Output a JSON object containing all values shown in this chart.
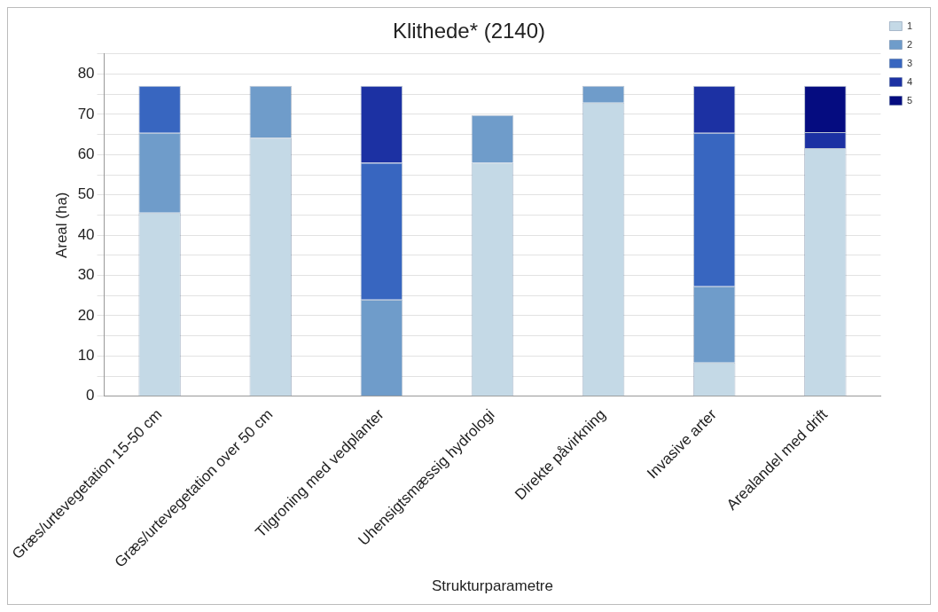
{
  "chart_data": {
    "type": "bar",
    "title": "Klithede* (2140)",
    "xlabel": "Strukturparametre",
    "ylabel": "Areal (ha)",
    "categories": [
      "Græs/urtevegetation 15-50 cm",
      "Græs/urtevegetation over 50 cm",
      "Tilgroning med vedplanter",
      "Uhensigtsmæssig hydrologi",
      "Direkte påvirkning",
      "Invasive arter",
      "Arealandel med drift"
    ],
    "stacked": true,
    "ylim": [
      0,
      85
    ],
    "yticks": [
      0,
      {
        "value": 5,
        "label": null
      },
      10,
      {
        "value": 15,
        "label": null
      },
      20,
      {
        "value": 25,
        "label": null
      },
      30,
      {
        "value": 35,
        "label": null
      },
      40,
      {
        "value": 45,
        "label": null
      },
      50,
      {
        "value": 55,
        "label": null
      },
      60,
      {
        "value": 65,
        "label": null
      },
      70,
      {
        "value": 75,
        "label": null
      },
      80,
      {
        "value": 85,
        "label": null
      }
    ],
    "grid": "y",
    "legend": "top right",
    "series": [
      {
        "name": "1",
        "color": "#c4d9e6",
        "values": [
          45.6,
          64.2,
          null,
          58,
          72.9,
          8.4,
          61.6
        ]
      },
      {
        "name": "2",
        "color": "#6f9cca",
        "values": [
          19.8,
          12.9,
          24,
          11.8,
          4.2,
          18.9,
          null
        ]
      },
      {
        "name": "3",
        "color": "#3866c0",
        "values": [
          11.7,
          null,
          34,
          null,
          null,
          38.1,
          null
        ]
      },
      {
        "name": "4",
        "color": "#1c31a3",
        "values": [
          null,
          null,
          19.1,
          null,
          null,
          11.7,
          4
        ]
      },
      {
        "name": "5",
        "color": "#050c80",
        "values": [
          null,
          null,
          null,
          null,
          null,
          null,
          11.5
        ]
      }
    ]
  }
}
